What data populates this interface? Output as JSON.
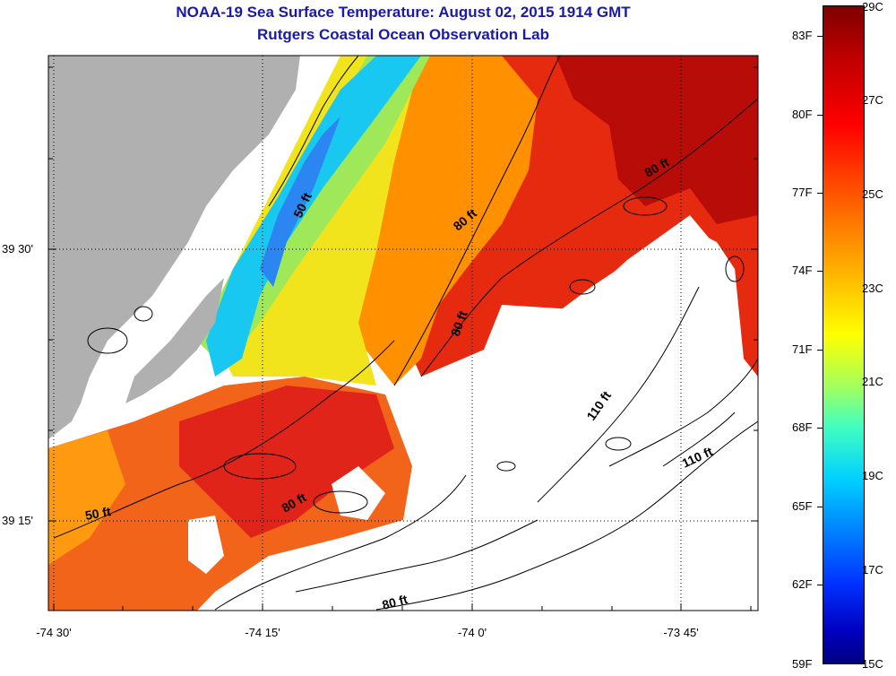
{
  "header": {
    "title": "NOAA-19 Sea Surface Temperature:  August 02, 2015 1914 GMT",
    "subtitle": "Rutgers Coastal Ocean Observation Lab"
  },
  "map": {
    "longitude_labels": [
      "-74 30'",
      "-74 15'",
      "-74 0'",
      "-73 45'"
    ],
    "latitude_labels": [
      "39 30'",
      "39 15'"
    ],
    "contour_labels": [
      "50 ft",
      "50 ft",
      "80 ft",
      "80 ft",
      "80 ft",
      "80 ft",
      "80 ft",
      "110 ft",
      "110 ft"
    ],
    "land_color": "#b0b0b0",
    "no_data_color": "#ffffff"
  },
  "colorbar": {
    "fahrenheit_labels": [
      "83F",
      "80F",
      "77F",
      "74F",
      "71F",
      "68F",
      "65F",
      "62F",
      "59F"
    ],
    "celsius_labels": [
      "29C",
      "27C",
      "25C",
      "23C",
      "21C",
      "19C",
      "17C",
      "15C"
    ],
    "range_c": [
      15,
      29
    ],
    "colors": [
      "#800000",
      "#ff0000",
      "#ffa000",
      "#ffff00",
      "#40ffc0",
      "#00d0ff",
      "#0030ff",
      "#000080"
    ]
  }
}
